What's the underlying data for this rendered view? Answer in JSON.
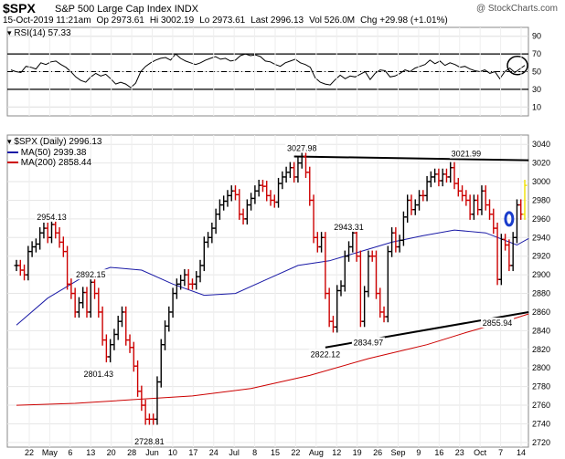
{
  "header": {
    "symbol": "$SPX",
    "company": "S&P 500 Large Cap Index",
    "exchange": "INDX",
    "watermark": "@ StockCharts.com",
    "date": "15-Oct-2019 11:21am",
    "open": "Op 2973.61",
    "high": "Hi 3002.19",
    "low": "Lo 2973.61",
    "last": "Last 2996.13",
    "volume": "Vol 526.0M",
    "change": "Chg +29.98 (+1.01%)"
  },
  "rsi_label": "RSI(14) 57.33",
  "price_label": "$SPX (Daily) 2996.13",
  "ma50_label": "MA(50) 2939.38",
  "ma200_label": "MA(200) 2858.44",
  "colors": {
    "up": "#000000",
    "down": "#cc0000",
    "ma50": "#1a1aa6",
    "ma200": "#cc0000",
    "last_bar": "#f0e000",
    "circle": "#1a3dcc"
  },
  "chart_data": [
    {
      "type": "line",
      "name": "RSI(14)",
      "ylim": [
        0,
        100
      ],
      "levels": [
        30,
        50,
        70
      ],
      "yticks": [
        10,
        30,
        50,
        70,
        90
      ],
      "values": [
        52,
        50,
        49,
        56,
        55,
        53,
        60,
        58,
        61,
        62,
        58,
        55,
        50,
        44,
        40,
        38,
        44,
        48,
        45,
        47,
        42,
        36,
        38,
        36,
        32,
        37,
        50,
        56,
        60,
        63,
        65,
        66,
        63,
        70,
        65,
        62,
        60,
        58,
        60,
        63,
        65,
        67,
        64,
        65,
        62,
        63,
        68,
        70,
        68,
        69,
        67,
        62,
        61,
        58,
        56,
        60,
        62,
        64,
        60,
        58,
        55,
        43,
        38,
        36,
        35,
        41,
        46,
        42,
        45,
        44,
        47,
        50,
        41,
        48,
        52,
        51,
        44,
        45,
        48,
        52,
        50,
        54,
        56,
        58,
        63,
        59,
        62,
        57,
        60,
        58,
        55,
        56,
        53,
        51,
        50,
        52,
        48,
        50,
        42,
        50,
        54,
        49,
        53,
        57
      ]
    },
    {
      "type": "bar",
      "name": "$SPX (Daily)",
      "ylim": [
        2715,
        3050
      ],
      "yticks": [
        2720,
        2740,
        2760,
        2780,
        2800,
        2820,
        2840,
        2860,
        2880,
        2900,
        2920,
        2940,
        2960,
        2980,
        3000,
        3020,
        3040
      ],
      "xticks": [
        "22",
        "May",
        "6",
        "13",
        "20",
        "28",
        "Jun",
        "10",
        "17",
        "24",
        "Jul",
        "8",
        "15",
        "22",
        "Aug",
        "12",
        "19",
        "26",
        "Sep",
        "9",
        "16",
        "23",
        "Oct",
        "7",
        "14"
      ],
      "closes": [
        2910,
        2905,
        2900,
        2925,
        2930,
        2933,
        2945,
        2950,
        2940,
        2954,
        2945,
        2935,
        2925,
        2890,
        2880,
        2860,
        2870,
        2881,
        2860,
        2892,
        2880,
        2860,
        2830,
        2812,
        2825,
        2836,
        2850,
        2860,
        2830,
        2822,
        2802,
        2775,
        2760,
        2745,
        2745,
        2745,
        2785,
        2825,
        2845,
        2860,
        2880,
        2890,
        2894,
        2900,
        2890,
        2890,
        2898,
        2910,
        2935,
        2940,
        2950,
        2965,
        2975,
        2979,
        2985,
        2990,
        2986,
        2965,
        2960,
        2975,
        2982,
        2990,
        2996,
        2995,
        2985,
        2980,
        2978,
        2998,
        3005,
        3010,
        3015,
        3005,
        3020,
        3027,
        3010,
        2980,
        2940,
        2930,
        2940,
        2880,
        2850,
        2844,
        2883,
        2888,
        2920,
        2930,
        2945,
        2920,
        2850,
        2882,
        2920,
        2920,
        2880,
        2860,
        2855,
        2925,
        2945,
        2930,
        2937,
        2962,
        2980,
        2970,
        2975,
        2985,
        2985,
        3000,
        3005,
        3008,
        3001,
        3008,
        3005,
        3015,
        2998,
        2990,
        2985,
        2980,
        2965,
        2980,
        2970,
        2990,
        2975,
        2965,
        2950,
        2895,
        2938,
        2932,
        2910,
        2940,
        2975,
        2965,
        2996
      ],
      "bar_up": [
        1,
        0,
        0,
        1,
        1,
        1,
        1,
        1,
        0,
        1,
        0,
        0,
        0,
        0,
        0,
        0,
        1,
        1,
        0,
        1,
        0,
        0,
        0,
        0,
        1,
        1,
        1,
        1,
        0,
        0,
        0,
        0,
        0,
        0,
        0,
        0,
        1,
        1,
        1,
        1,
        1,
        1,
        1,
        1,
        0,
        0,
        1,
        1,
        1,
        1,
        1,
        1,
        1,
        1,
        1,
        1,
        0,
        0,
        0,
        1,
        1,
        1,
        1,
        0,
        0,
        0,
        0,
        1,
        1,
        1,
        1,
        0,
        1,
        1,
        0,
        0,
        0,
        0,
        1,
        0,
        0,
        0,
        1,
        1,
        1,
        1,
        1,
        0,
        0,
        1,
        1,
        0,
        0,
        0,
        0,
        1,
        1,
        0,
        1,
        1,
        1,
        0,
        1,
        1,
        0,
        1,
        1,
        1,
        0,
        1,
        0,
        1,
        0,
        0,
        0,
        0,
        0,
        1,
        0,
        1,
        0,
        0,
        0,
        0,
        1,
        0,
        0,
        1,
        1,
        0,
        1
      ],
      "ma50_points": [
        [
          0,
          2846
        ],
        [
          8,
          2875
        ],
        [
          16,
          2895
        ],
        [
          24,
          2908
        ],
        [
          32,
          2905
        ],
        [
          40,
          2890
        ],
        [
          48,
          2878
        ],
        [
          56,
          2880
        ],
        [
          64,
          2895
        ],
        [
          72,
          2910
        ],
        [
          80,
          2915
        ],
        [
          88,
          2925
        ],
        [
          96,
          2935
        ],
        [
          104,
          2942
        ],
        [
          112,
          2948
        ],
        [
          120,
          2945
        ],
        [
          128,
          2932
        ],
        [
          131,
          2939
        ]
      ],
      "ma200_points": [
        [
          0,
          2760
        ],
        [
          15,
          2762
        ],
        [
          30,
          2766
        ],
        [
          45,
          2770
        ],
        [
          60,
          2778
        ],
        [
          75,
          2792
        ],
        [
          90,
          2810
        ],
        [
          105,
          2825
        ],
        [
          115,
          2838
        ],
        [
          125,
          2850
        ],
        [
          131,
          2858
        ]
      ],
      "resistance": [
        [
          71,
          3027
        ],
        [
          131,
          3023
        ]
      ],
      "support": [
        [
          79,
          2822
        ],
        [
          131,
          2860
        ]
      ],
      "annotations": [
        {
          "text": "2954.13",
          "x": 9,
          "y": 2954.13,
          "pos": "above"
        },
        {
          "text": "2892.15",
          "x": 19,
          "y": 2892.15,
          "pos": "above"
        },
        {
          "text": "2801.43",
          "x": 21,
          "y": 2801.43,
          "pos": "below"
        },
        {
          "text": "2728.81",
          "x": 34,
          "y": 2728.81,
          "pos": "below"
        },
        {
          "text": "3027.98",
          "x": 73,
          "y": 3027.98,
          "pos": "above"
        },
        {
          "text": "2943.31",
          "x": 85,
          "y": 2943.31,
          "pos": "above"
        },
        {
          "text": "2822.12",
          "x": 79,
          "y": 2822.12,
          "pos": "below"
        },
        {
          "text": "2834.97",
          "x": 90,
          "y": 2834.97,
          "pos": "below"
        },
        {
          "text": "3021.99",
          "x": 115,
          "y": 3021.99,
          "pos": "above"
        },
        {
          "text": "2855.94",
          "x": 123,
          "y": 2855.94,
          "pos": "below"
        }
      ]
    }
  ]
}
